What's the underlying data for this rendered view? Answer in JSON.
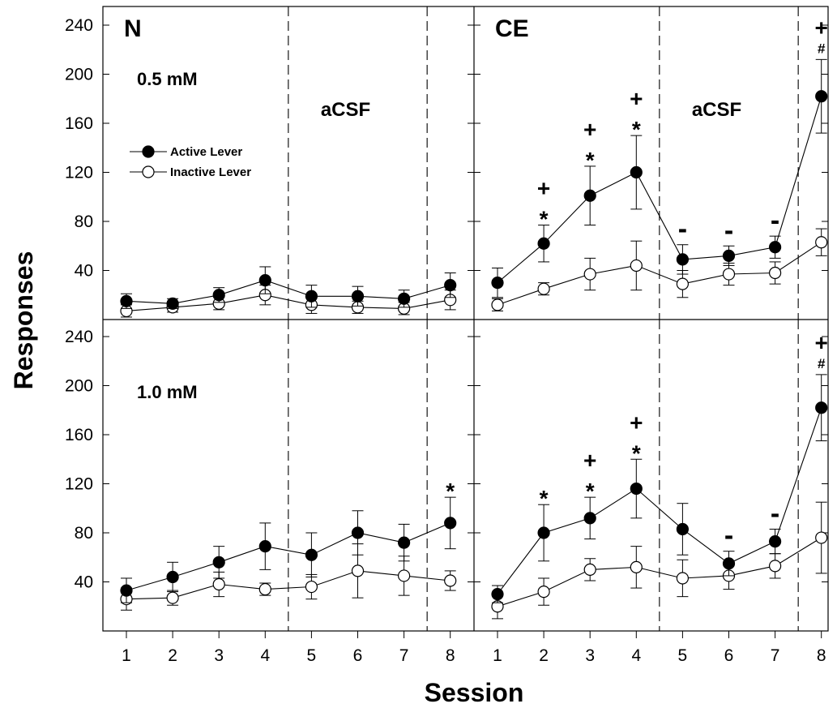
{
  "chart_data": {
    "type": "line",
    "xlabel": "Session",
    "ylabel": "Responses",
    "x": [
      1,
      2,
      3,
      4,
      5,
      6,
      7,
      8
    ],
    "xticks": [
      "1",
      "2",
      "3",
      "4",
      "5",
      "6",
      "7",
      "8"
    ],
    "yticks": [
      "40",
      "80",
      "120",
      "160",
      "200",
      "240"
    ],
    "ylim": [
      0,
      260
    ],
    "legend": {
      "placement": "top-left panel",
      "entries": [
        {
          "name": "Active Lever",
          "marker": "filled-circle"
        },
        {
          "name": "Inactive Lever",
          "marker": "open-circle"
        }
      ]
    },
    "panels": [
      {
        "group": "N",
        "dose": "0.5 mM",
        "phase_label": "aCSF",
        "series": [
          {
            "name": "Active Lever",
            "values": [
              15,
              13,
              20,
              32,
              19,
              19,
              17,
              28
            ],
            "errors": [
              6,
              4,
              6,
              11,
              9,
              8,
              7,
              10
            ]
          },
          {
            "name": "Inactive Lever",
            "values": [
              7,
              10,
              13,
              20,
              12,
              10,
              9,
              16
            ],
            "errors": [
              5,
              4,
              5,
              8,
              7,
              5,
              5,
              8
            ]
          }
        ],
        "annotations": []
      },
      {
        "group": "CE",
        "dose": "",
        "phase_label": "aCSF",
        "series": [
          {
            "name": "Active Lever",
            "values": [
              30,
              62,
              101,
              120,
              49,
              52,
              59,
              182
            ],
            "errors": [
              12,
              15,
              24,
              30,
              12,
              8,
              9,
              30
            ]
          },
          {
            "name": "Inactive Lever",
            "values": [
              12,
              25,
              37,
              44,
              29,
              37,
              38,
              63
            ],
            "errors": [
              5,
              5,
              13,
              20,
              11,
              9,
              9,
              11
            ]
          }
        ],
        "annotations": [
          {
            "x": 2,
            "symbols": [
              "+",
              "*"
            ]
          },
          {
            "x": 3,
            "symbols": [
              "+",
              "*"
            ]
          },
          {
            "x": 4,
            "symbols": [
              "+",
              "*"
            ]
          },
          {
            "x": 5,
            "symbols": [
              "-"
            ]
          },
          {
            "x": 6,
            "symbols": [
              "-"
            ]
          },
          {
            "x": 7,
            "symbols": [
              "-"
            ]
          },
          {
            "x": 8,
            "symbols": [
              "+",
              "#"
            ]
          }
        ]
      },
      {
        "group": "",
        "dose": "1.0 mM",
        "phase_label": "",
        "series": [
          {
            "name": "Active Lever",
            "values": [
              33,
              44,
              56,
              69,
              62,
              80,
              72,
              88
            ],
            "errors": [
              10,
              12,
              13,
              19,
              18,
              18,
              15,
              21
            ]
          },
          {
            "name": "Inactive Lever",
            "values": [
              26,
              27,
              38,
              34,
              36,
              49,
              45,
              41
            ],
            "errors": [
              9,
              6,
              10,
              5,
              10,
              22,
              16,
              8
            ]
          }
        ],
        "annotations": [
          {
            "x": 8,
            "symbols": [
              "*"
            ]
          }
        ]
      },
      {
        "group": "",
        "dose": "",
        "phase_label": "",
        "series": [
          {
            "name": "Active Lever",
            "values": [
              30,
              80,
              92,
              116,
              83,
              55,
              73,
              182
            ],
            "errors": [
              7,
              23,
              17,
              24,
              21,
              10,
              10,
              27
            ]
          },
          {
            "name": "Inactive Lever",
            "values": [
              20,
              32,
              50,
              52,
              43,
              45,
              53,
              76
            ],
            "errors": [
              10,
              11,
              9,
              17,
              15,
              11,
              10,
              29
            ]
          }
        ],
        "annotations": [
          {
            "x": 2,
            "symbols": [
              "*"
            ]
          },
          {
            "x": 3,
            "symbols": [
              "+",
              "*"
            ]
          },
          {
            "x": 4,
            "symbols": [
              "+",
              "*"
            ]
          },
          {
            "x": 6,
            "symbols": [
              "-"
            ]
          },
          {
            "x": 7,
            "symbols": [
              "-"
            ]
          },
          {
            "x": 8,
            "symbols": [
              "+",
              "#"
            ]
          }
        ]
      }
    ]
  }
}
